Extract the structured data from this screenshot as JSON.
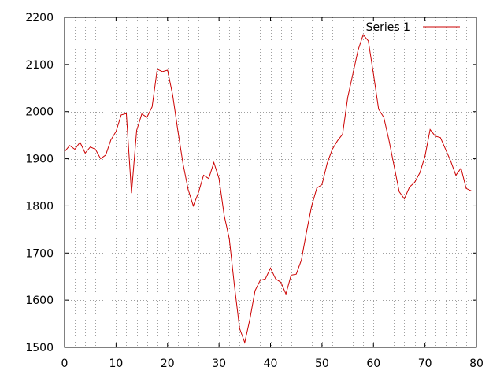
{
  "chart_data": {
    "type": "line",
    "title": "",
    "xlabel": "",
    "ylabel": "",
    "xlim": [
      0,
      80
    ],
    "ylim": [
      1500,
      2200
    ],
    "xticks": [
      0,
      10,
      20,
      30,
      40,
      50,
      60,
      70,
      80
    ],
    "yticks": [
      1500,
      1600,
      1700,
      1800,
      1900,
      2000,
      2100,
      2200
    ],
    "grid": true,
    "legend": "top-right",
    "series": [
      {
        "name": "Series 1",
        "color": "#cc0000",
        "x": [
          0,
          1,
          2,
          3,
          4,
          5,
          6,
          7,
          8,
          9,
          10,
          11,
          12,
          13,
          14,
          15,
          16,
          17,
          18,
          19,
          20,
          21,
          22,
          23,
          24,
          25,
          26,
          27,
          28,
          29,
          30,
          31,
          32,
          33,
          34,
          35,
          36,
          37,
          38,
          39,
          40,
          41,
          42,
          43,
          44,
          45,
          46,
          47,
          48,
          49,
          50,
          51,
          52,
          53,
          54,
          55,
          56,
          57,
          58,
          59,
          60,
          61,
          62,
          63,
          64,
          65,
          66,
          67,
          68,
          69,
          70,
          71,
          72,
          73,
          74,
          75,
          76,
          77,
          78,
          79
        ],
        "y": [
          1915,
          1928,
          1920,
          1935,
          1912,
          1925,
          1920,
          1900,
          1908,
          1940,
          1958,
          1993,
          1996,
          1827,
          1960,
          1995,
          1988,
          2010,
          2090,
          2085,
          2088,
          2035,
          1960,
          1890,
          1835,
          1800,
          1828,
          1865,
          1858,
          1892,
          1858,
          1780,
          1730,
          1630,
          1540,
          1510,
          1560,
          1620,
          1642,
          1645,
          1668,
          1645,
          1638,
          1613,
          1653,
          1655,
          1685,
          1745,
          1800,
          1838,
          1845,
          1890,
          1920,
          1938,
          1952,
          2030,
          2080,
          2130,
          2163,
          2150,
          2080,
          2005,
          1988,
          1940,
          1885,
          1830,
          1815,
          1840,
          1850,
          1870,
          1905,
          1962,
          1948,
          1945,
          1920,
          1895,
          1865,
          1880,
          1837,
          1832
        ]
      }
    ]
  }
}
